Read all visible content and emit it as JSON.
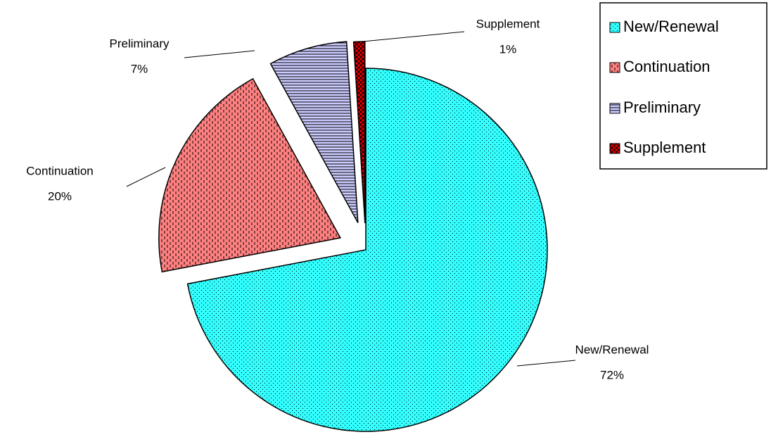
{
  "chart_data": {
    "type": "pie",
    "categories": [
      "New/Renewal",
      "Continuation",
      "Preliminary",
      "Supplement"
    ],
    "values": [
      72,
      20,
      7,
      1
    ],
    "value_labels": [
      "72%",
      "20%",
      "7%",
      "1%"
    ],
    "colors": [
      "#33ffff",
      "#ff8080",
      "#ccccff",
      "#ee0000"
    ],
    "legend": "top-right"
  }
}
